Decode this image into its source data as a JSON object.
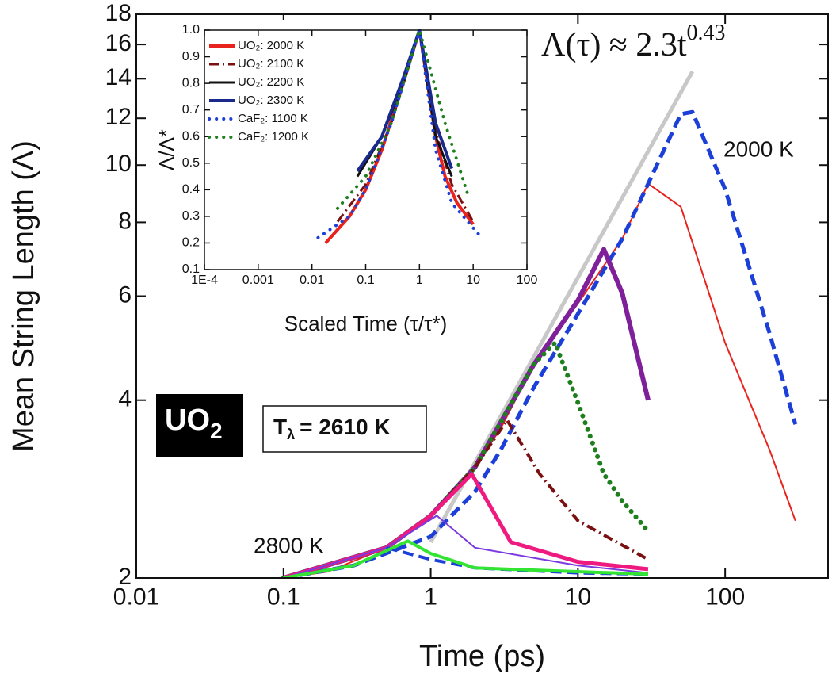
{
  "chart_data": [
    {
      "type": "line",
      "x_label": "Time (ps)",
      "y_label": "Mean String Length (Λ)",
      "xlim": [
        0.01,
        500
      ],
      "xticks": [
        0.01,
        0.1,
        1,
        10,
        100
      ],
      "x_log": true,
      "ylim": [
        2,
        18
      ],
      "yticks": [
        2,
        4,
        6,
        8,
        10,
        12,
        14,
        16,
        18
      ],
      "y_log": true,
      "fit_label": {
        "text": "Λ(τ) ≈ 2.3t",
        "exponent": "0.43"
      },
      "annotations": [
        "2000 K",
        "2800 K"
      ],
      "material_label": {
        "text": "UO",
        "subscript": "2"
      },
      "temperature_label": {
        "symbol": "T",
        "subscript": "λ",
        "text": "= 2610 K"
      },
      "series": [
        {
          "color": "#c8c8c8",
          "style": "solid",
          "width": 5,
          "x": [
            1,
            60
          ],
          "values": [
            2.3,
            14.4
          ]
        },
        {
          "color": "#e8221c",
          "style": "solid",
          "width": 2,
          "x": [
            0.1,
            0.2,
            0.5,
            1,
            2,
            3,
            5,
            10,
            20,
            30,
            50,
            100,
            200,
            300
          ],
          "values": [
            2.0,
            2.05,
            2.25,
            2.55,
            3.08,
            3.59,
            4.59,
            5.83,
            7.5,
            9.3,
            8.5,
            5.0,
            3.3,
            2.5
          ]
        },
        {
          "color": "#1c3fd8",
          "style": "dashed",
          "width": 5,
          "x": [
            0.1,
            0.3,
            1,
            2,
            3,
            5,
            10,
            20,
            30,
            50,
            60,
            100,
            200,
            300
          ],
          "values": [
            2.0,
            2.1,
            2.35,
            2.8,
            3.3,
            4.2,
            5.6,
            7.5,
            9.3,
            12.2,
            12.3,
            9.1,
            5.2,
            3.64
          ]
        },
        {
          "color": "#7f1f9a",
          "style": "solid",
          "width": 6,
          "x": [
            0.1,
            0.5,
            1,
            2,
            5,
            10,
            15,
            20,
            30
          ],
          "values": [
            2.0,
            2.25,
            2.55,
            3.08,
            4.59,
            5.9,
            7.2,
            6.07,
            4.0
          ]
        },
        {
          "color": "#1f7f1f",
          "style": "dotted",
          "width": 6,
          "x": [
            0.1,
            0.5,
            1,
            2,
            5,
            7,
            10,
            15,
            20,
            30
          ],
          "values": [
            2.0,
            2.25,
            2.55,
            3.08,
            4.6,
            5.0,
            3.96,
            3.0,
            2.7,
            2.4
          ]
        },
        {
          "color": "#7a1010",
          "style": "dashdot",
          "width": 4,
          "x": [
            0.1,
            0.5,
            1,
            2,
            3.3,
            5.5,
            10,
            30
          ],
          "values": [
            2.0,
            2.25,
            2.55,
            3.08,
            3.7,
            3.0,
            2.5,
            2.15
          ]
        },
        {
          "color": "#ee1a80",
          "style": "solid",
          "width": 5,
          "x": [
            0.1,
            0.5,
            1,
            1.9,
            3.5,
            10,
            30
          ],
          "values": [
            2.0,
            2.25,
            2.55,
            3.0,
            2.3,
            2.13,
            2.07
          ]
        },
        {
          "color": "#7a3adf",
          "style": "solid",
          "width": 2,
          "x": [
            0.1,
            0.5,
            1.1,
            2,
            10,
            30
          ],
          "values": [
            2.0,
            2.25,
            2.55,
            2.25,
            2.1,
            2.04
          ]
        },
        {
          "color": "#1c3fd8",
          "style": "dashed",
          "width": 4,
          "x": [
            0.5,
            1,
            2,
            10,
            30
          ],
          "values": [
            2.25,
            2.15,
            2.08,
            2.04,
            2.03
          ]
        },
        {
          "color": "#33e533",
          "style": "solid",
          "width": 4,
          "x": [
            0.1,
            0.3,
            0.7,
            1,
            2,
            30
          ],
          "values": [
            2.0,
            2.1,
            2.31,
            2.2,
            2.08,
            2.03
          ]
        }
      ]
    },
    {
      "type": "line",
      "x_label": "Scaled Time (τ/τ*)",
      "y_label": "Λ/Λ*",
      "xlim": [
        0.0001,
        100
      ],
      "xticks": [
        {
          "value": 0.0001,
          "label": "1E-4"
        },
        0.001,
        0.01,
        0.1,
        1,
        10,
        100
      ],
      "x_log": true,
      "ylim": [
        0.1,
        1
      ],
      "yticks": [
        0.1,
        0.2,
        0.3,
        0.4,
        0.5,
        0.6,
        0.7,
        0.8,
        0.9,
        {
          "value": 1,
          "label": "1.0"
        }
      ],
      "y_log": false,
      "series": [
        {
          "name": "UO₂: 2000 K",
          "color": "#e8221c",
          "style": "solid",
          "width": 4,
          "x": [
            0.018,
            0.05,
            0.1,
            0.2,
            0.5,
            1,
            2,
            3,
            5,
            10
          ],
          "values": [
            0.2,
            0.3,
            0.4,
            0.55,
            0.8,
            1.0,
            0.6,
            0.45,
            0.35,
            0.27
          ]
        },
        {
          "name": "UO₂: 2100 K",
          "color": "#7a1010",
          "style": "dashdot",
          "width": 3,
          "x": [
            0.03,
            0.1,
            0.3,
            1,
            2,
            4,
            10
          ],
          "values": [
            0.28,
            0.42,
            0.65,
            1.0,
            0.62,
            0.42,
            0.28
          ]
        },
        {
          "name": "UO₂: 2200 K",
          "color": "#111111",
          "style": "solid",
          "width": 3,
          "x": [
            0.07,
            0.2,
            0.5,
            1,
            2,
            4
          ],
          "values": [
            0.45,
            0.6,
            0.8,
            1.0,
            0.6,
            0.45
          ]
        },
        {
          "name": "UO₂: 2300 K",
          "color": "#1a2a8c",
          "style": "solid",
          "width": 4,
          "x": [
            0.07,
            0.2,
            0.5,
            1,
            2,
            4
          ],
          "values": [
            0.47,
            0.6,
            0.82,
            1.0,
            0.65,
            0.48
          ]
        },
        {
          "name": "CaF₂: 1100 K",
          "color": "#1c3fd8",
          "style": "dotted",
          "width": 4,
          "x": [
            0.013,
            0.05,
            0.1,
            0.3,
            1,
            2,
            4,
            13
          ],
          "values": [
            0.22,
            0.3,
            0.4,
            0.65,
            1.0,
            0.55,
            0.35,
            0.23
          ]
        },
        {
          "name": "CaF₂: 1200 K",
          "color": "#1f7f1f",
          "style": "dotted",
          "width": 4,
          "x": [
            0.03,
            0.1,
            0.3,
            1,
            3,
            8
          ],
          "values": [
            0.33,
            0.45,
            0.65,
            1.0,
            0.65,
            0.38
          ]
        }
      ]
    }
  ]
}
